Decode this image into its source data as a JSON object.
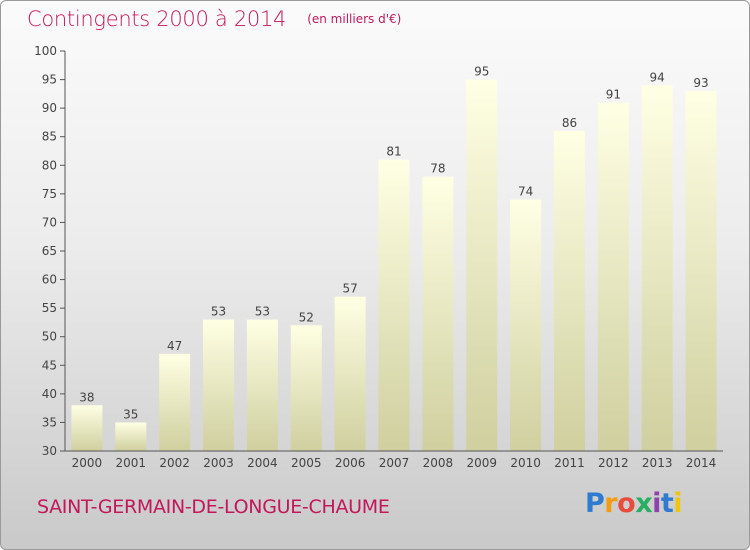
{
  "header": {
    "title": "Contingents 2000 à 2014",
    "unit": "(en milliers d'€)"
  },
  "footer": {
    "commune": "SAINT-GERMAIN-DE-LONGUE-CHAUME",
    "logo": [
      "P",
      "r",
      "o",
      "x",
      "i",
      "t",
      "i"
    ]
  },
  "colors": {
    "title": "#c2185b",
    "bar_top": "#ffffe4",
    "bar_bottom": "#cfcf9f",
    "axis": "#555555",
    "text": "#444444"
  },
  "chart_data": {
    "type": "bar",
    "title": "Contingents 2000 à 2014",
    "subtitle": "(en milliers d'€)",
    "xlabel": "",
    "ylabel": "",
    "categories": [
      "2000",
      "2001",
      "2002",
      "2003",
      "2004",
      "2005",
      "2006",
      "2007",
      "2008",
      "2009",
      "2010",
      "2011",
      "2012",
      "2013",
      "2014"
    ],
    "values": [
      38,
      35,
      47,
      53,
      53,
      52,
      57,
      81,
      78,
      95,
      74,
      86,
      91,
      94,
      93
    ],
    "ylim": [
      30,
      100
    ],
    "yticks": [
      30,
      35,
      40,
      45,
      50,
      55,
      60,
      65,
      70,
      75,
      80,
      85,
      90,
      95,
      100
    ],
    "grid": false,
    "data_labels": true
  }
}
